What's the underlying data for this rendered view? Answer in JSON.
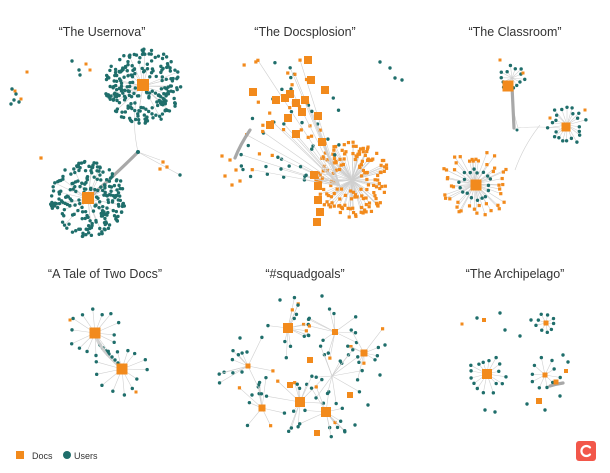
{
  "colors": {
    "doc": "#f28a1c",
    "user": "#1f6e6b",
    "edge": "#cfcfcf",
    "heavy_edge": "#a8a8a8",
    "logo": "#f2574a"
  },
  "panels": [
    {
      "title": "“The Usernova”"
    },
    {
      "title": "“The Docsplosion”"
    },
    {
      "title": "“The Classroom”"
    },
    {
      "title": "“A Tale of Two Docs”"
    },
    {
      "title": "“#squadgoals”"
    },
    {
      "title": "“The Archipelago”"
    }
  ],
  "legend": {
    "items": [
      {
        "label": "Docs",
        "shape": "square",
        "color": "#f28a1c"
      },
      {
        "label": "Users",
        "shape": "circle",
        "color": "#1f6e6b"
      }
    ]
  },
  "logo": {
    "icon": "coda-logo-icon",
    "color": "#f2574a"
  }
}
